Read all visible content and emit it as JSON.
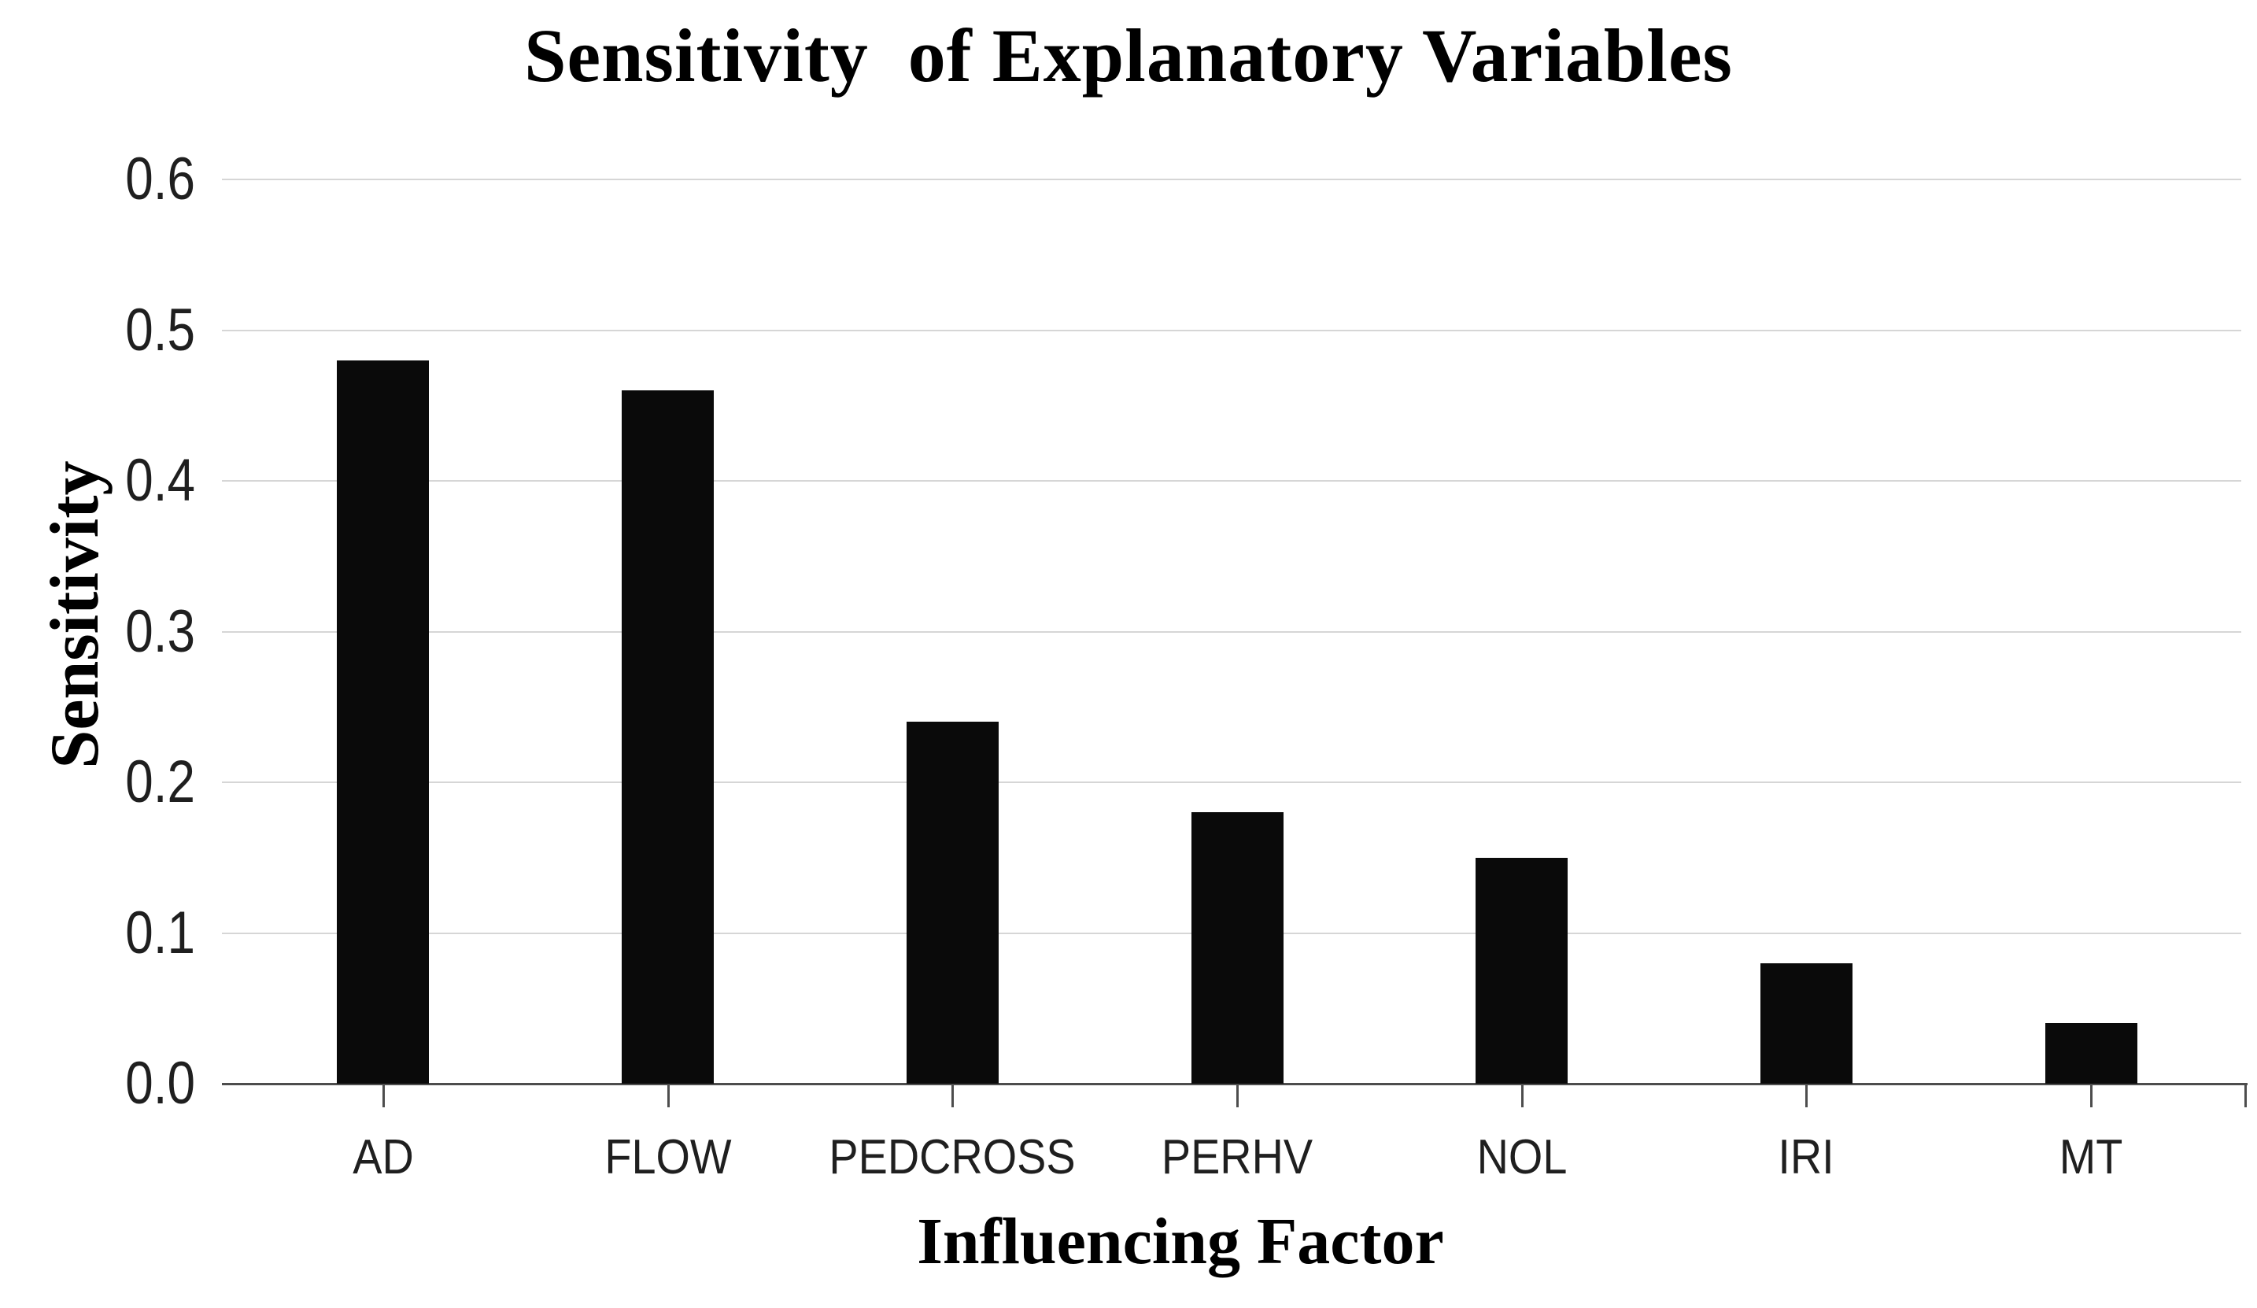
{
  "page": {
    "background": "#ffffff"
  },
  "chart_data": {
    "type": "bar",
    "title": "Sensitivity  of Explanatory Variables",
    "ylabel": "Sensitivity",
    "xlabel": "Influencing Factor",
    "categories": [
      "AD",
      "FLOW",
      "PEDCROSS",
      "PERHV",
      "NOL",
      "IRI",
      "MT"
    ],
    "values": [
      0.48,
      0.46,
      0.24,
      0.18,
      0.15,
      0.08,
      0.04
    ],
    "ylim": [
      0.0,
      0.6
    ],
    "ytick_step": 0.1,
    "yticks": [
      "0.0",
      "0.1",
      "0.2",
      "0.3",
      "0.4",
      "0.5",
      "0.6"
    ],
    "grid": true,
    "legend_position": "none",
    "bar_color": "#0a0a0a",
    "gridline_color": "#d6d6d6",
    "axis_line_color": "#4d4d4d",
    "tick_color": "#4d4d4d",
    "tick_label_color": "#1f1f1f",
    "title_color": "#000000"
  }
}
